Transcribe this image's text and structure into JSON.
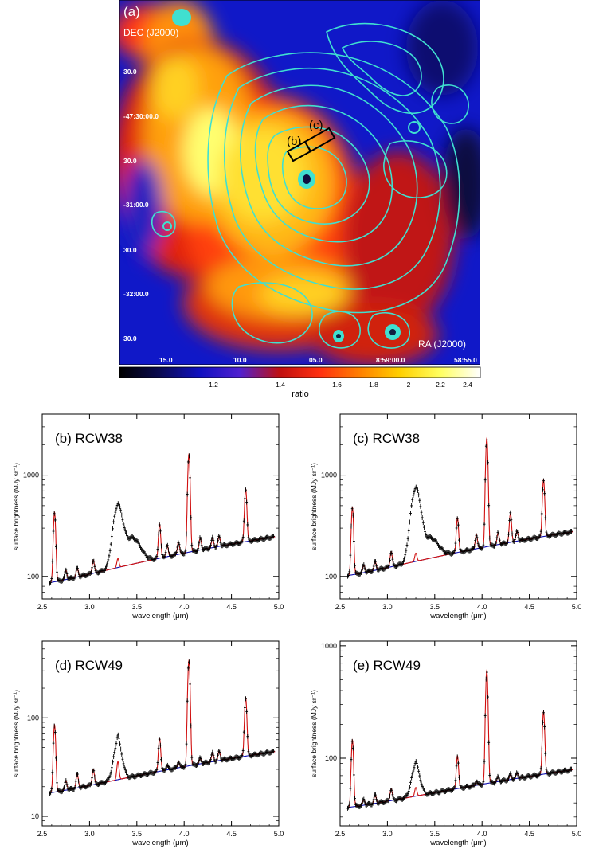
{
  "map_panel": {
    "panel_label": "(a)",
    "dec_label": "DEC (J2000)",
    "ra_label": "RA (J2000)",
    "dec_ticks": [
      "30.0",
      "-47:30:00.0",
      "30.0",
      "-31:00.0",
      "30.0",
      "-32:00.0",
      "30.0"
    ],
    "ra_ticks": [
      "15.0",
      "10.0",
      "05.0",
      "8:59:00.0",
      "58:55.0"
    ],
    "slit_labels": [
      "(b)",
      "(c)"
    ],
    "colorbar": {
      "label": "ratio",
      "ticks": [
        "1.2",
        "1.4",
        "1.6",
        "1.8",
        "2",
        "2.2",
        "2.4"
      ],
      "colors": [
        "#000000",
        "#0a0a50",
        "#1010c0",
        "#5020d0",
        "#c01010",
        "#ff3010",
        "#ff8000",
        "#ffd000",
        "#ffff60",
        "#ffffff"
      ]
    },
    "contour_color": "#40e0d0"
  },
  "chart_data": [
    {
      "type": "line",
      "title": "(b) RCW38",
      "xlabel": "wavelength (μm)",
      "ylabel": "surface brightness (MJy sr⁻¹)",
      "xlim": [
        2.5,
        5.0
      ],
      "ylim": [
        60,
        4000
      ],
      "yscale": "log",
      "x_ticks": [
        "2.5",
        "3.0",
        "3.5",
        "4.0",
        "4.5",
        "5.0"
      ],
      "y_ticks": [
        {
          "value": 100,
          "label": "100"
        },
        {
          "value": 1000,
          "label": "1000"
        }
      ],
      "continuum": {
        "start": 85,
        "end": 250
      },
      "lines": [
        {
          "x": 2.63,
          "peak": 430
        },
        {
          "x": 2.75,
          "peak": 115
        },
        {
          "x": 2.87,
          "peak": 120
        },
        {
          "x": 3.04,
          "peak": 145
        },
        {
          "x": 3.3,
          "peak": 150
        },
        {
          "x": 3.74,
          "peak": 330
        },
        {
          "x": 3.82,
          "peak": 205
        },
        {
          "x": 3.94,
          "peak": 220
        },
        {
          "x": 4.05,
          "peak": 1600
        },
        {
          "x": 4.17,
          "peak": 240
        },
        {
          "x": 4.3,
          "peak": 240
        },
        {
          "x": 4.37,
          "peak": 250
        },
        {
          "x": 4.65,
          "peak": 730
        }
      ],
      "features": [
        {
          "x": 3.3,
          "peak": 480,
          "width": 0.045
        },
        {
          "x": 3.45,
          "peak": 240,
          "width": 0.08
        }
      ],
      "colors": {
        "data": "#000000",
        "fit": "#d01010",
        "continuum": "#1010b0"
      }
    },
    {
      "type": "line",
      "title": "(c) RCW38",
      "xlabel": "wavelength (μm)",
      "ylabel": "surface brightness (MJy sr⁻¹)",
      "xlim": [
        2.5,
        5.0
      ],
      "ylim": [
        60,
        4000
      ],
      "yscale": "log",
      "x_ticks": [
        "2.5",
        "3.0",
        "3.5",
        "4.0",
        "4.5",
        "5.0"
      ],
      "y_ticks": [
        {
          "value": 100,
          "label": "100"
        },
        {
          "value": 1000,
          "label": "1000"
        }
      ],
      "continuum": {
        "start": 100,
        "end": 280
      },
      "lines": [
        {
          "x": 2.63,
          "peak": 480
        },
        {
          "x": 2.75,
          "peak": 130
        },
        {
          "x": 2.87,
          "peak": 140
        },
        {
          "x": 3.04,
          "peak": 175
        },
        {
          "x": 3.3,
          "peak": 170
        },
        {
          "x": 3.74,
          "peak": 380
        },
        {
          "x": 3.94,
          "peak": 260
        },
        {
          "x": 4.05,
          "peak": 2300
        },
        {
          "x": 4.17,
          "peak": 270
        },
        {
          "x": 4.3,
          "peak": 420
        },
        {
          "x": 4.37,
          "peak": 280
        },
        {
          "x": 4.65,
          "peak": 900
        }
      ],
      "features": [
        {
          "x": 3.3,
          "peak": 720,
          "width": 0.045
        },
        {
          "x": 3.45,
          "peak": 240,
          "width": 0.08
        }
      ],
      "colors": {
        "data": "#000000",
        "fit": "#d01010",
        "continuum": "#1010b0"
      }
    },
    {
      "type": "line",
      "title": "(d) RCW49",
      "xlabel": "wavelength (μm)",
      "ylabel": "surface brightness (MJy sr⁻¹)",
      "xlim": [
        2.5,
        5.0
      ],
      "ylim": [
        8,
        600
      ],
      "yscale": "log",
      "x_ticks": [
        "2.5",
        "3.0",
        "3.5",
        "4.0",
        "4.5",
        "5.0"
      ],
      "y_ticks": [
        {
          "value": 10,
          "label": "10"
        },
        {
          "value": 100,
          "label": "100"
        }
      ],
      "continuum": {
        "start": 17,
        "end": 46
      },
      "lines": [
        {
          "x": 2.63,
          "peak": 85
        },
        {
          "x": 2.75,
          "peak": 23
        },
        {
          "x": 2.87,
          "peak": 27
        },
        {
          "x": 3.04,
          "peak": 30
        },
        {
          "x": 3.3,
          "peak": 36
        },
        {
          "x": 3.74,
          "peak": 62
        },
        {
          "x": 3.82,
          "peak": 33
        },
        {
          "x": 3.94,
          "peak": 36
        },
        {
          "x": 4.05,
          "peak": 380
        },
        {
          "x": 4.17,
          "peak": 39
        },
        {
          "x": 4.3,
          "peak": 44
        },
        {
          "x": 4.37,
          "peak": 46
        },
        {
          "x": 4.65,
          "peak": 160
        }
      ],
      "features": [
        {
          "x": 3.3,
          "peak": 55,
          "width": 0.04
        }
      ],
      "colors": {
        "data": "#000000",
        "fit": "#d01010",
        "continuum": "#1010b0"
      }
    },
    {
      "type": "line",
      "title": "(e) RCW49",
      "xlabel": "wavelength (μm)",
      "ylabel": "surface brightness (MJy sr⁻¹)",
      "xlim": [
        2.5,
        5.0
      ],
      "ylim": [
        25,
        1100
      ],
      "yscale": "log",
      "x_ticks": [
        "2.5",
        "3.0",
        "3.5",
        "4.0",
        "4.5",
        "5.0"
      ],
      "y_ticks": [
        {
          "value": 100,
          "label": "100"
        },
        {
          "value": 1000,
          "label": "1000"
        }
      ],
      "continuum": {
        "start": 36,
        "end": 80
      },
      "lines": [
        {
          "x": 2.63,
          "peak": 145
        },
        {
          "x": 2.75,
          "peak": 43
        },
        {
          "x": 2.87,
          "peak": 47
        },
        {
          "x": 3.04,
          "peak": 53
        },
        {
          "x": 3.3,
          "peak": 55
        },
        {
          "x": 3.74,
          "peak": 105
        },
        {
          "x": 3.94,
          "peak": 63
        },
        {
          "x": 4.05,
          "peak": 600
        },
        {
          "x": 4.17,
          "peak": 68
        },
        {
          "x": 4.3,
          "peak": 72
        },
        {
          "x": 4.37,
          "peak": 74
        },
        {
          "x": 4.65,
          "peak": 260
        }
      ],
      "features": [
        {
          "x": 3.3,
          "peak": 85,
          "width": 0.04
        }
      ],
      "colors": {
        "data": "#000000",
        "fit": "#d01010",
        "continuum": "#1010b0"
      }
    }
  ]
}
